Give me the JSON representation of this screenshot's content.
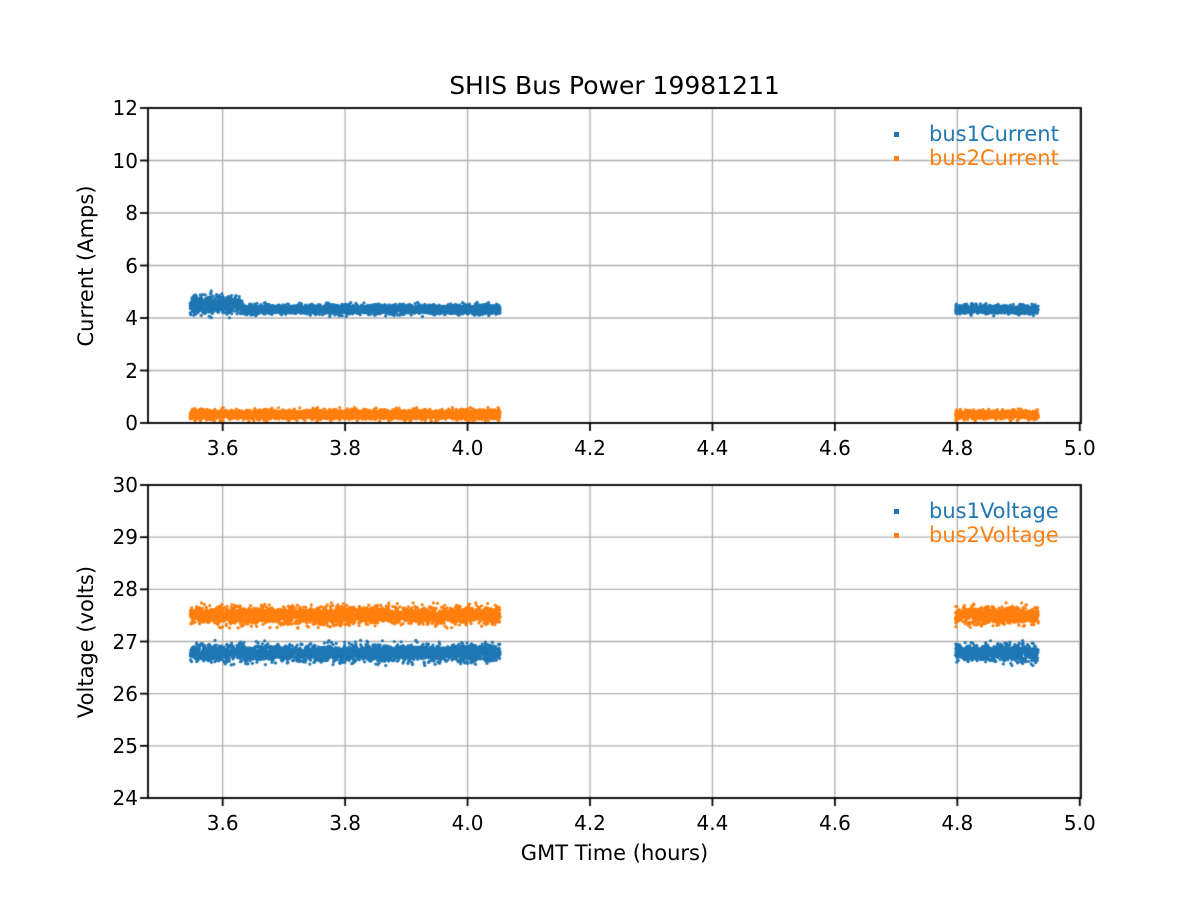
{
  "figure": {
    "title": "SHIS Bus Power 19981211"
  },
  "colors": {
    "series1": "#1f77b4",
    "series2": "#ff7f0e",
    "grid": "#b0b0b0",
    "spine": "#000000",
    "background": "#ffffff"
  },
  "chart_data": [
    {
      "type": "scatter",
      "title": "SHIS Bus Power 19981211",
      "xlabel": "",
      "ylabel": "Current (Amps)",
      "xlim": [
        3.478,
        5.002
      ],
      "ylim": [
        0,
        12
      ],
      "xticks": [
        3.6,
        3.8,
        4.0,
        4.2,
        4.4,
        4.6,
        4.8,
        5.0
      ],
      "xtick_labels": [
        "3.6",
        "3.8",
        "4.0",
        "4.2",
        "4.4",
        "4.6",
        "4.8",
        "5.0"
      ],
      "yticks": [
        0,
        2,
        4,
        6,
        8,
        10,
        12
      ],
      "ytick_labels": [
        "0",
        "2",
        "4",
        "6",
        "8",
        "10",
        "12"
      ],
      "grid": true,
      "legend": {
        "position": "upper-right",
        "entries": [
          {
            "label": "bus1Current",
            "color": "#1f77b4"
          },
          {
            "label": "bus2Current",
            "color": "#ff7f0e"
          }
        ]
      },
      "series": [
        {
          "name": "bus1Current",
          "color": "#1f77b4",
          "marker": "dot",
          "clusters": [
            {
              "x_range": [
                3.547,
                3.632
              ],
              "y_mean": 4.52,
              "y_sd": 0.17,
              "n": 520
            },
            {
              "x_range": [
                3.632,
                4.053
              ],
              "y_mean": 4.33,
              "y_sd": 0.09,
              "n": 2600
            },
            {
              "x_range": [
                4.797,
                4.932
              ],
              "y_mean": 4.33,
              "y_sd": 0.08,
              "n": 820
            }
          ]
        },
        {
          "name": "bus2Current",
          "color": "#ff7f0e",
          "marker": "dot",
          "clusters": [
            {
              "x_range": [
                3.547,
                4.053
              ],
              "y_mean": 0.32,
              "y_sd": 0.09,
              "n": 3100
            },
            {
              "x_range": [
                4.797,
                4.932
              ],
              "y_mean": 0.32,
              "y_sd": 0.08,
              "n": 820
            }
          ]
        }
      ]
    },
    {
      "type": "scatter",
      "title": "",
      "xlabel": "GMT Time (hours)",
      "ylabel": "Voltage (volts)",
      "xlim": [
        3.478,
        5.002
      ],
      "ylim": [
        24,
        30
      ],
      "xticks": [
        3.6,
        3.8,
        4.0,
        4.2,
        4.4,
        4.6,
        4.8,
        5.0
      ],
      "xtick_labels": [
        "3.6",
        "3.8",
        "4.0",
        "4.2",
        "4.4",
        "4.6",
        "4.8",
        "5.0"
      ],
      "yticks": [
        24,
        25,
        26,
        27,
        28,
        29,
        30
      ],
      "ytick_labels": [
        "24",
        "25",
        "26",
        "27",
        "28",
        "29",
        "30"
      ],
      "grid": true,
      "legend": {
        "position": "upper-right",
        "entries": [
          {
            "label": "bus1Voltage",
            "color": "#1f77b4"
          },
          {
            "label": "bus2Voltage",
            "color": "#ff7f0e"
          }
        ]
      },
      "series": [
        {
          "name": "bus1Voltage",
          "color": "#1f77b4",
          "marker": "dot",
          "clusters": [
            {
              "x_range": [
                3.547,
                4.053
              ],
              "y_mean": 26.78,
              "y_sd": 0.08,
              "n": 3100
            },
            {
              "x_range": [
                4.797,
                4.932
              ],
              "y_mean": 26.78,
              "y_sd": 0.08,
              "n": 820
            }
          ]
        },
        {
          "name": "bus2Voltage",
          "color": "#ff7f0e",
          "marker": "dot",
          "clusters": [
            {
              "x_range": [
                3.547,
                4.053
              ],
              "y_mean": 27.5,
              "y_sd": 0.08,
              "n": 3100
            },
            {
              "x_range": [
                4.797,
                4.932
              ],
              "y_mean": 27.5,
              "y_sd": 0.08,
              "n": 820
            }
          ]
        }
      ]
    }
  ]
}
